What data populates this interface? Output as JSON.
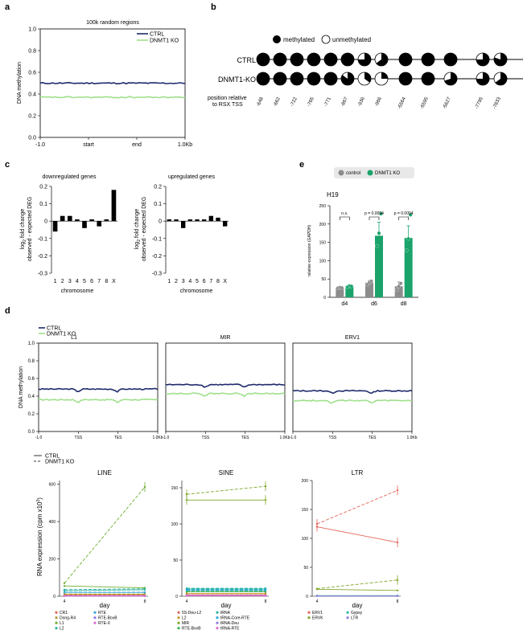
{
  "panels": {
    "a": "a",
    "b": "b",
    "c": "c",
    "d": "d",
    "e": "e"
  },
  "colors": {
    "ctrl": "#1f2a6b",
    "ko": "#9fe08c",
    "e_control": "#8c8c8c",
    "e_ko": "#1aa36b"
  },
  "chart_data": [
    {
      "id": "a",
      "type": "line",
      "title": "100k random regions",
      "ylabel": "DNA methylation",
      "ylim": [
        0,
        1.0
      ],
      "yticks": [
        "0.0",
        "0.2",
        "0.4",
        "0.6",
        "0.8",
        "1.0"
      ],
      "xticks": [
        "-1.0",
        "start",
        "end",
        "1.0Kb"
      ],
      "series": [
        {
          "name": "CTRL",
          "color": "#1f2a6b",
          "level": 0.5
        },
        {
          "name": "DNMT1 KO",
          "color": "#9fe08c",
          "level": 0.37
        }
      ]
    },
    {
      "id": "b",
      "type": "table",
      "legend": [
        "methylated",
        "unmethylated"
      ],
      "rows": [
        {
          "label": "CTRL",
          "fractions": [
            1,
            1,
            1,
            1,
            1,
            1,
            0.75,
            0.65,
            1,
            1,
            1,
            0.75,
            0.8,
            0.75
          ]
        },
        {
          "label": "DNMT1-KO",
          "fractions": [
            1,
            1,
            1,
            1,
            1,
            0.85,
            0.35,
            0.25,
            1,
            1,
            0.7,
            0.75,
            0.65,
            0.6
          ]
        }
      ],
      "position_label_1": "position relative",
      "position_label_2": "to RSX TSS",
      "positions": [
        "-648",
        "-662",
        "-722",
        "-765",
        "-771",
        "-867",
        "-936",
        "-966",
        "-5564",
        "-5595",
        "-5627",
        "-7795",
        "-7833",
        "-7889"
      ]
    },
    {
      "id": "c1",
      "type": "bar",
      "title": "downregulated genes",
      "categories": [
        "1",
        "2",
        "3",
        "4",
        "5",
        "6",
        "7",
        "8",
        "X"
      ],
      "values": [
        -0.06,
        0.03,
        0.03,
        0.01,
        -0.04,
        0.01,
        -0.03,
        0.01,
        0.18
      ],
      "ylim": [
        -0.3,
        0.2
      ],
      "yticks": [
        "0.2",
        "0.1",
        "0",
        "-0.1",
        "-0.2",
        "-0.3"
      ],
      "ylabel_1": "log",
      "ylabel_sub": "2",
      "ylabel_2": " fold change",
      "ylabel_3": "observed - expected DEG",
      "xlabel": "chromosome"
    },
    {
      "id": "c2",
      "type": "bar",
      "title": "upregulated genes",
      "categories": [
        "1",
        "2",
        "3",
        "4",
        "5",
        "6",
        "7",
        "8",
        "X"
      ],
      "values": [
        0.01,
        0.01,
        -0.04,
        0.01,
        0.01,
        0.01,
        0.03,
        0.02,
        -0.03
      ],
      "ylim": [
        -0.3,
        0.2
      ],
      "yticks": [
        "0.2",
        "0.1",
        "0",
        "-0.1",
        "-0.2",
        "-0.3"
      ],
      "ylabel_1": "log",
      "ylabel_sub": "2",
      "ylabel_2": " fold change",
      "ylabel_3": "observed - expected DEG",
      "xlabel": "chromosome"
    },
    {
      "id": "e",
      "type": "bar",
      "title": "H19",
      "legend": [
        "control",
        "DNMT1 KO"
      ],
      "categories": [
        "d4",
        "d6",
        "d8"
      ],
      "series": [
        {
          "name": "control",
          "values": [
            26,
            40,
            30
          ],
          "err": [
            2,
            6,
            12
          ],
          "points": [
            [
              25,
              27,
              26
            ],
            [
              35,
              40,
              44
            ],
            [
              20,
              30,
              38
            ]
          ]
        },
        {
          "name": "DNMT1 KO",
          "values": [
            30,
            168,
            162
          ],
          "err": [
            4,
            37,
            33
          ],
          "points": [
            [
              28,
              31,
              30
            ],
            [
              140,
              175,
              228
            ],
            [
              128,
              160,
              225
            ]
          ]
        }
      ],
      "annotations": [
        "n.s.",
        "p = 0.0004",
        "p = 0.0004"
      ],
      "ylabel": "relative expression (GAPDH)",
      "ylim": [
        0,
        250
      ],
      "yticks": [
        "0",
        "50",
        "100",
        "150",
        "200",
        "250"
      ]
    },
    {
      "id": "d1",
      "type": "line",
      "legend": [
        "CTRL",
        "DNMT1 KO"
      ],
      "ylabel": "DNA methylation",
      "ylim": [
        0,
        1.0
      ],
      "yticks": [
        "0.0",
        "0.2",
        "0.4",
        "0.6",
        "0.8",
        "1.0"
      ],
      "xticks": [
        "-1.0",
        "TSS",
        "TES",
        "1.0Kb"
      ],
      "facets": [
        {
          "title": "L1",
          "ctrl": 0.48,
          "ko": 0.36
        },
        {
          "title": "MIR",
          "ctrl": 0.53,
          "ko": 0.43
        },
        {
          "title": "ERV1",
          "ctrl": 0.46,
          "ko": 0.35
        }
      ]
    },
    {
      "id": "d2",
      "type": "line",
      "legend": [
        "CTRL",
        "DNMT1 KO"
      ],
      "ylabel_1": "RNA expression (cpm x10",
      "ylabel_sup": "3",
      "ylabel_2": ")",
      "xlabel": "day",
      "xticks": [
        "4",
        "8"
      ],
      "facets": [
        {
          "title": "LINE",
          "ylim": [
            0,
            620
          ],
          "yticks": [
            "0",
            "200",
            "400",
            "600"
          ],
          "series": [
            {
              "name": "CR1",
              "color": "#e4665a",
              "ctrl": [
                5,
                5
              ],
              "ko": [
                6,
                6
              ]
            },
            {
              "name": "Dong-R4",
              "color": "#b59a2f",
              "ctrl": [
                10,
                10
              ],
              "ko": [
                12,
                12
              ]
            },
            {
              "name": "L1",
              "color": "#6fae2e",
              "ctrl": [
                55,
                45
              ],
              "ko": [
                70,
                585
              ]
            },
            {
              "name": "L2",
              "color": "#2fb5a0",
              "ctrl": [
                30,
                35
              ],
              "ko": [
                35,
                40
              ]
            },
            {
              "name": "RTE",
              "color": "#38a9d9",
              "ctrl": [
                20,
                20
              ],
              "ko": [
                22,
                22
              ]
            },
            {
              "name": "RTE-BovB",
              "color": "#8c7ae6",
              "ctrl": [
                2,
                2
              ],
              "ko": [
                3,
                3
              ]
            },
            {
              "name": "RTE-X",
              "color": "#e06ad1",
              "ctrl": [
                1,
                1
              ],
              "ko": [
                1,
                1
              ]
            }
          ]
        },
        {
          "title": "SINE",
          "ylim": [
            0,
            160
          ],
          "yticks": [
            "0",
            "50",
            "100",
            "150"
          ],
          "series": [
            {
              "name": "5S-Deu-L2",
              "color": "#e4665a",
              "ctrl": [
                2,
                2
              ],
              "ko": [
                2,
                2
              ]
            },
            {
              "name": "L2",
              "color": "#c7972b",
              "ctrl": [
                4,
                4
              ],
              "ko": [
                4,
                4
              ]
            },
            {
              "name": "MIR",
              "color": "#7fa62a",
              "ctrl": [
                133,
                133
              ],
              "ko": [
                141,
                152
              ]
            },
            {
              "name": "RTE-BovB",
              "color": "#39b54a",
              "ctrl": [
                6,
                6
              ],
              "ko": [
                7,
                7
              ]
            },
            {
              "name": "tRNA",
              "color": "#29b9a8",
              "ctrl": [
                10,
                10
              ],
              "ko": [
                11,
                11
              ]
            },
            {
              "name": "tRNA-Core-RTE",
              "color": "#2aa6d6",
              "ctrl": [
                8,
                8
              ],
              "ko": [
                9,
                9
              ]
            },
            {
              "name": "tRNA-Deu",
              "color": "#8f7ae0",
              "ctrl": [
                1,
                1
              ],
              "ko": [
                1,
                1
              ]
            },
            {
              "name": "tRNA-RTE",
              "color": "#e06ad1",
              "ctrl": [
                0.5,
                0.5
              ],
              "ko": [
                0.5,
                0.5
              ]
            }
          ]
        },
        {
          "title": "LTR",
          "ylim": [
            0,
            200
          ],
          "yticks": [
            "0",
            "50",
            "100",
            "150",
            "200"
          ],
          "series": [
            {
              "name": "ERV1",
              "color": "#e4665a",
              "ctrl": [
                120,
                93
              ],
              "ko": [
                125,
                183
              ]
            },
            {
              "name": "ERVK",
              "color": "#7fa62a",
              "ctrl": [
                12,
                10
              ],
              "ko": [
                13,
                28
              ]
            },
            {
              "name": "Gypsy",
              "color": "#29b9a8",
              "ctrl": [
                1,
                1
              ],
              "ko": [
                1,
                1
              ]
            },
            {
              "name": "LTR",
              "color": "#8f7ae0",
              "ctrl": [
                0.5,
                0.5
              ],
              "ko": [
                0.5,
                0.5
              ]
            }
          ]
        }
      ]
    }
  ]
}
